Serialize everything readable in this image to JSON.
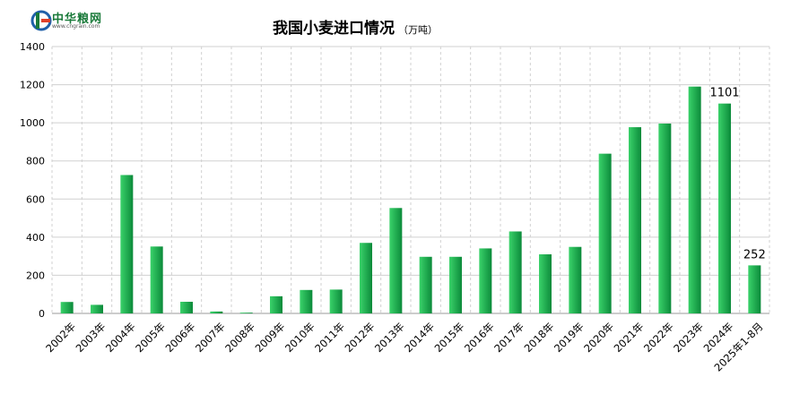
{
  "logo": {
    "name": "中华粮网",
    "url": "www.cngrain.com"
  },
  "chart_data": {
    "type": "bar",
    "title": "我国小麦进口情况",
    "unit": "（万吨）",
    "categories": [
      "2002年",
      "2003年",
      "2004年",
      "2005年",
      "2006年",
      "2007年",
      "2008年",
      "2009年",
      "2010年",
      "2011年",
      "2012年",
      "2013年",
      "2014年",
      "2015年",
      "2016年",
      "2017年",
      "2018年",
      "2019年",
      "2020年",
      "2021年",
      "2022年",
      "2023年",
      "2024年",
      "2025年1-8月"
    ],
    "values": [
      60,
      45,
      726,
      351,
      61,
      10,
      4,
      90,
      123,
      125,
      370,
      553,
      297,
      297,
      341,
      430,
      310,
      349,
      838,
      977,
      996,
      1190,
      1101,
      252
    ],
    "data_labels": {
      "22": "1101",
      "23": "252"
    },
    "ylim": [
      0,
      1400
    ],
    "yticks": [
      0,
      200,
      400,
      600,
      800,
      1000,
      1200,
      1400
    ],
    "grid": true,
    "bar_color_light": "#3ad26a",
    "bar_color_dark": "#0b8a3a",
    "grid_color": "#d0d0d0"
  }
}
